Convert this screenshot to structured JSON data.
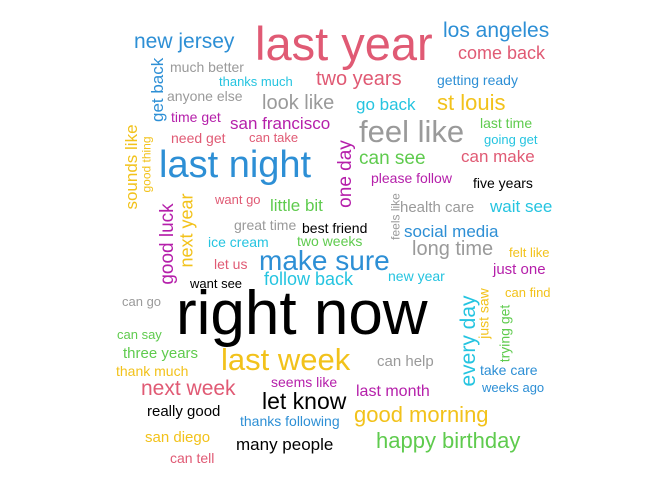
{
  "palette": {
    "red": "#e05a74",
    "blue": "#2d8fd5",
    "gray": "#9a9a9a",
    "cyan": "#25c4e0",
    "yellow": "#f2c21b",
    "green": "#5fcb4e",
    "magenta": "#b51faa",
    "black": "#000000"
  },
  "words": {
    "right_now": "right now",
    "last_year": "last year",
    "last_night": "last night",
    "feel_like": "feel like",
    "make_sure": "make sure",
    "last_week": "last week",
    "good_morning": "good morning",
    "happy_birthday": "happy birthday",
    "los_angeles": "los angeles",
    "new_jersey": "new jersey",
    "come_back": "come back",
    "two_years": "two years",
    "st_louis": "st louis",
    "look_like": "look like",
    "go_back": "go back",
    "san_francisco": "san francisco",
    "can_see": "can see",
    "can_make": "can make",
    "next_week": "next week",
    "let_know": "let know",
    "every_day": "every day",
    "one_day": "one day",
    "social_media": "social media",
    "long_time": "long time",
    "follow_back": "follow back",
    "much_better": "much better",
    "thanks_much": "thanks much",
    "getting_ready": "getting ready",
    "anyone_else": "anyone else",
    "time_get": "time get",
    "need_get": "need get",
    "can_take": "can take",
    "last_time": "last time",
    "going_get": "going get",
    "get_back": "get back",
    "sounds_like": "sounds like",
    "good_thing": "good thing",
    "please_follow": "please follow",
    "five_years": "five years",
    "want_go": "want go",
    "little_bit": "little bit",
    "health_care": "health care",
    "wait_see": "wait see",
    "feels_like": "feels like",
    "great_time": "great time",
    "best_friend": "best friend",
    "ice_cream": "ice cream",
    "two_weeks": "two weeks",
    "next_year": "next year",
    "good_luck": "good luck",
    "felt_like": "felt like",
    "let_us": "let us",
    "just_one": "just one",
    "new_year": "new year",
    "want_see": "want see",
    "can_go": "can go",
    "can_find": "can find",
    "just_saw": "just saw",
    "trying_get": "trying get",
    "can_say": "can say",
    "three_years": "three years",
    "thank_much": "thank much",
    "can_help": "can help",
    "take_care": "take care",
    "weeks_ago": "weeks ago",
    "seems_like": "seems like",
    "last_month": "last month",
    "really_good": "really good",
    "thanks_following": "thanks following",
    "san_diego": "san diego",
    "many_people": "many people",
    "can_tell": "can tell"
  }
}
